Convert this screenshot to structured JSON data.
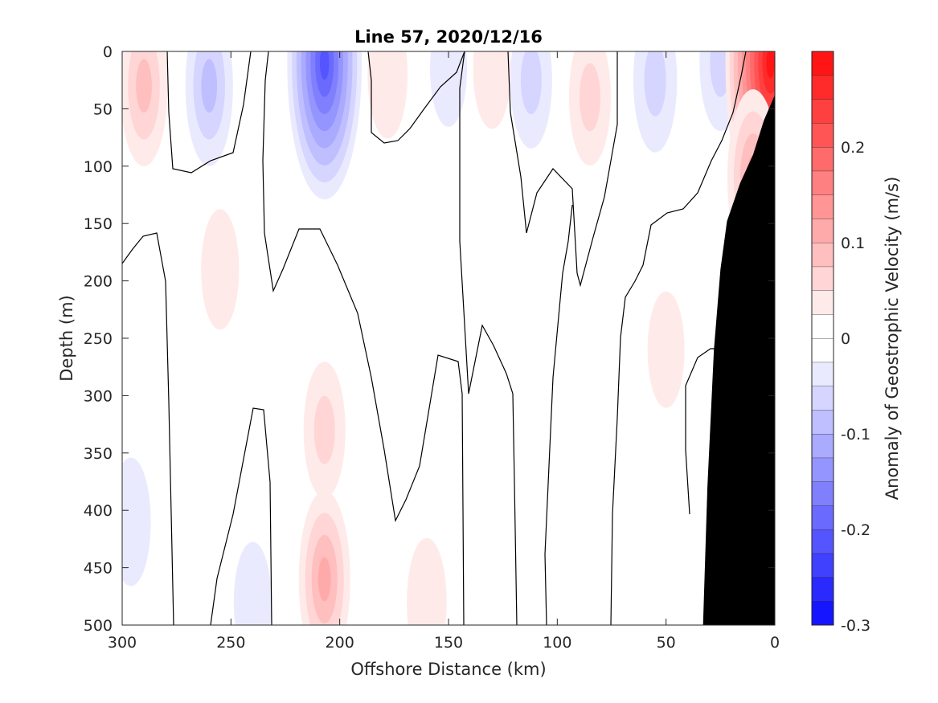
{
  "chart_data": {
    "type": "heatmap",
    "subtype": "filled-contour-section",
    "title": "Line 57, 2020/12/16",
    "xlabel": "Offshore Distance (km)",
    "ylabel": "Depth (m)",
    "colorbar_label": "Anomaly of Geostrophic Velocity (m/s)",
    "x_reversed": true,
    "xlim": [
      0,
      300
    ],
    "ylim": [
      0,
      500
    ],
    "y_reversed": true,
    "x_ticks": [
      300,
      250,
      200,
      150,
      100,
      50,
      0
    ],
    "y_ticks": [
      0,
      50,
      100,
      150,
      200,
      250,
      300,
      350,
      400,
      450,
      500
    ],
    "clim": [
      -0.3,
      0.3
    ],
    "contour_step": 0.025,
    "colorbar_ticks": [
      -0.3,
      -0.2,
      -0.1,
      0,
      0.1,
      0.2
    ],
    "colorbar_tick_labels": [
      "-0.3",
      "-0.2",
      "-0.1",
      "0",
      "0.1",
      "0.2"
    ],
    "colormap": {
      "negative_end": "#0000ff",
      "zero": "#ffffff",
      "positive_end": "#ff0000"
    },
    "zero_contour_color": "#000000",
    "bathymetry_fill": "#000000",
    "bathymetry": [
      [
        0,
        38
      ],
      [
        5,
        60
      ],
      [
        10,
        90
      ],
      [
        16,
        115
      ],
      [
        22,
        148
      ],
      [
        25,
        190
      ],
      [
        28,
        260
      ],
      [
        31,
        380
      ],
      [
        33,
        500
      ]
    ],
    "anomaly_features": [
      {
        "x": 207,
        "depth": 10,
        "value": -0.22
      },
      {
        "x": 260,
        "depth": 30,
        "value": -0.08
      },
      {
        "x": 55,
        "depth": 25,
        "value": -0.06
      },
      {
        "x": 25,
        "depth": 10,
        "value": -0.05
      },
      {
        "x": 112,
        "depth": 25,
        "value": -0.05
      },
      {
        "x": 150,
        "depth": 15,
        "value": -0.025
      },
      {
        "x": 290,
        "depth": 30,
        "value": 0.08
      },
      {
        "x": 85,
        "depth": 40,
        "value": 0.05
      },
      {
        "x": 178,
        "depth": 20,
        "value": 0.04
      },
      {
        "x": 130,
        "depth": 15,
        "value": 0.03
      },
      {
        "x": 2,
        "depth": 10,
        "value": 0.3
      },
      {
        "x": 10,
        "depth": 110,
        "value": 0.1
      },
      {
        "x": 207,
        "depth": 460,
        "value": 0.1
      },
      {
        "x": 207,
        "depth": 330,
        "value": 0.05
      },
      {
        "x": 255,
        "depth": 190,
        "value": 0.03
      },
      {
        "x": 160,
        "depth": 480,
        "value": 0.04
      },
      {
        "x": 50,
        "depth": 260,
        "value": 0.025
      },
      {
        "x": 65,
        "depth": 470,
        "value": 0.02
      },
      {
        "x": 296,
        "depth": 410,
        "value": -0.04
      },
      {
        "x": 240,
        "depth": 480,
        "value": -0.03
      }
    ]
  }
}
